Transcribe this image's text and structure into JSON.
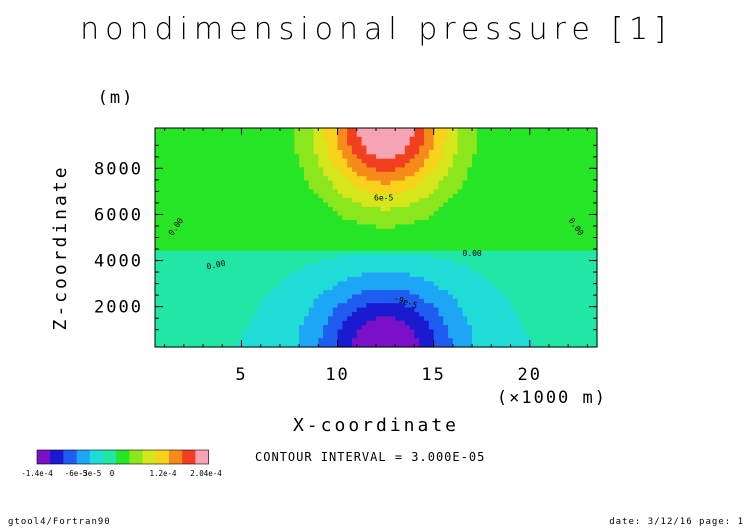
{
  "chart_data": {
    "type": "contour",
    "title": "nondimensional pressure [1]",
    "xlabel": "X-coordinate",
    "xunit": "(×1000 m)",
    "ylabel": "Z-coordinate",
    "yunit": "(m)",
    "xlim": [
      0.5,
      23.5
    ],
    "ylim": [
      250,
      9750
    ],
    "xticks": [
      5,
      10,
      15,
      20
    ],
    "yticks": [
      2000,
      4000,
      6000,
      8000
    ],
    "contour_interval_label": "CONTOUR INTERVAL = 3.000E-05",
    "contour_labels": [
      "0.00",
      "0.00",
      "0.00",
      "0.00",
      "0.00",
      "6e-5",
      "-9e-5"
    ],
    "colorbar": {
      "colors": [
        "#7a10c8",
        "#1a1ad0",
        "#1f5cf0",
        "#1ea6f6",
        "#20dcd6",
        "#20e6a6",
        "#26e426",
        "#8ce61e",
        "#d6e61c",
        "#f6d21a",
        "#f68a1a",
        "#f04020",
        "#f6a4b4"
      ],
      "tick_labels": [
        "-1.4e-4",
        "-6e-5",
        "-3e-5",
        "0",
        "1.2e-4",
        "2.04e-4"
      ]
    }
  },
  "footer": {
    "left": "gtool4/Fortran90",
    "right": "date: 3/12/16 page: 1"
  }
}
